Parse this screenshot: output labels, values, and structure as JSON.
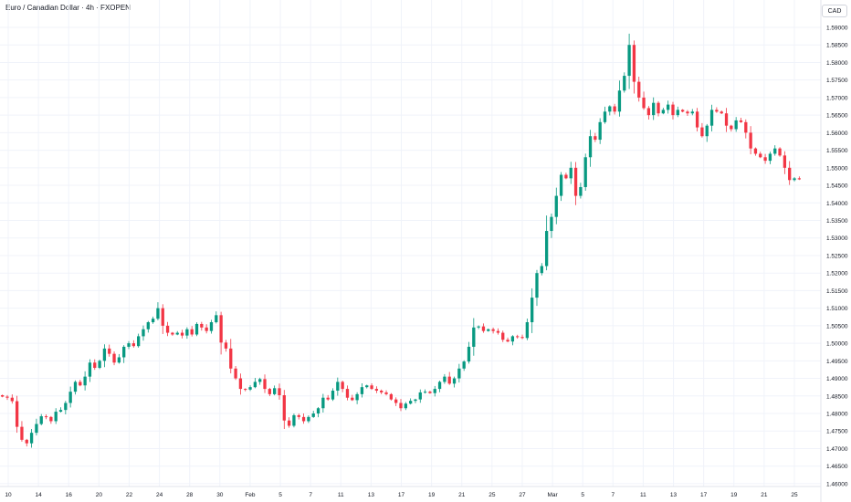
{
  "header": {
    "title": "Euro / Canadian Dollar · 4h · FXOPEN",
    "currency": "CAD"
  },
  "chart_data": {
    "type": "candlestick",
    "title": "Euro / Canadian Dollar · 4h · FXOPEN",
    "ylabel": "CAD",
    "ylim": [
      1.4592,
      1.5978
    ],
    "y_ticks": [
      "1.46000",
      "1.46500",
      "1.47000",
      "1.47500",
      "1.48000",
      "1.48500",
      "1.49000",
      "1.49500",
      "1.50000",
      "1.50500",
      "1.51000",
      "1.51500",
      "1.52000",
      "1.52500",
      "1.53000",
      "1.53500",
      "1.54000",
      "1.54500",
      "1.55000",
      "1.55500",
      "1.56000",
      "1.56500",
      "1.57000",
      "1.57500",
      "1.58000",
      "1.58500",
      "1.59000"
    ],
    "x_ticks": [
      "10",
      "14",
      "16",
      "20",
      "22",
      "24",
      "28",
      "30",
      "Feb",
      "5",
      "7",
      "11",
      "13",
      "17",
      "19",
      "21",
      "25",
      "27",
      "Mar",
      "5",
      "7",
      "11",
      "13",
      "17",
      "19",
      "21",
      "25"
    ],
    "colors": {
      "up": "#089981",
      "down": "#f23645",
      "grid": "#f0f3fa",
      "axis": "#e0e3eb"
    },
    "grid": true,
    "close_series": [
      1.4848,
      1.4845,
      1.4835,
      1.4762,
      1.4725,
      1.4715,
      1.4745,
      1.477,
      1.4792,
      1.479,
      1.4778,
      1.4805,
      1.481,
      1.483,
      1.4862,
      1.489,
      1.488,
      1.4905,
      1.4945,
      1.493,
      1.495,
      1.4985,
      1.497,
      1.4945,
      1.496,
      1.499,
      1.5,
      1.4992,
      1.502,
      1.504,
      1.506,
      1.507,
      1.51,
      1.505,
      1.503,
      1.5025,
      1.503,
      1.5022,
      1.504,
      1.5025,
      1.5055,
      1.5045,
      1.5035,
      1.506,
      1.508,
      1.5002,
      1.4985,
      1.4928,
      1.49,
      1.487,
      1.4868,
      1.4875,
      1.489,
      1.4898,
      1.487,
      1.4855,
      1.4872,
      1.4852,
      1.478,
      1.4765,
      1.4795,
      1.479,
      1.4778,
      1.479,
      1.48,
      1.4815,
      1.4845,
      1.484,
      1.4865,
      1.489,
      1.487,
      1.4845,
      1.4838,
      1.4855,
      1.4875,
      1.488,
      1.487,
      1.4865,
      1.486,
      1.4855,
      1.484,
      1.483,
      1.4815,
      1.4828,
      1.4836,
      1.484,
      1.486,
      1.4862,
      1.4858,
      1.487,
      1.489,
      1.4905,
      1.4885,
      1.49,
      1.4928,
      1.4948,
      1.499,
      1.5045,
      1.5048,
      1.5035,
      1.504,
      1.5035,
      1.503,
      1.501,
      1.5005,
      1.502,
      1.5018,
      1.5015,
      1.506,
      1.513,
      1.52,
      1.522,
      1.532,
      1.536,
      1.542,
      1.548,
      1.547,
      1.55,
      1.542,
      1.5445,
      1.553,
      1.559,
      1.558,
      1.563,
      1.566,
      1.5675,
      1.566,
      1.572,
      1.5762,
      1.585,
      1.5745,
      1.57,
      1.567,
      1.565,
      1.5685,
      1.5655,
      1.5665,
      1.568,
      1.565,
      1.5665,
      1.566,
      1.5655,
      1.566,
      1.5615,
      1.559,
      1.562,
      1.5665,
      1.566,
      1.5655,
      1.562,
      1.561,
      1.5635,
      1.563,
      1.56,
      1.5555,
      1.554,
      1.553,
      1.552,
      1.554,
      1.5555,
      1.5535,
      1.55,
      1.5465,
      1.547,
      1.5467
    ]
  }
}
